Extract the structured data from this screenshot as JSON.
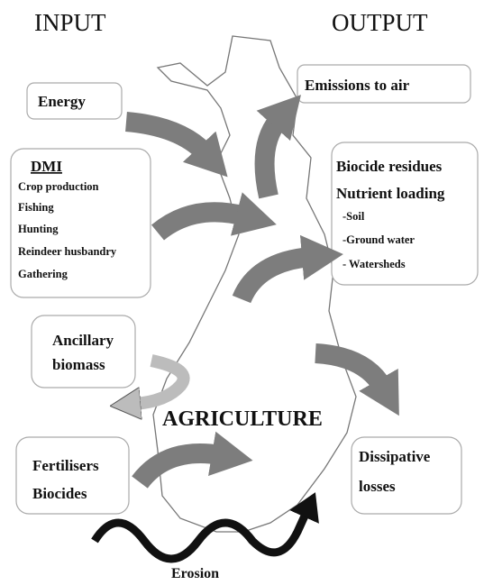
{
  "headers": {
    "input": "INPUT",
    "output": "OUTPUT"
  },
  "inputs": {
    "energy": "Energy",
    "dmi": {
      "title": "DMI",
      "items": [
        "Crop production",
        "Fishing",
        "Hunting",
        "Reindeer husbandry",
        "Gathering"
      ]
    },
    "ancillary": [
      "Ancillary",
      "biomass"
    ],
    "fertilisers": [
      "Fertilisers",
      "Biocides"
    ]
  },
  "outputs": {
    "emissions": "Emissions to air",
    "residues": {
      "lines": [
        "Biocide residues",
        "Nutrient loading"
      ],
      "items": [
        "-Soil",
        "-Ground water",
        "- Watersheds"
      ]
    },
    "dissipative": [
      "Dissipative",
      "losses"
    ]
  },
  "center": "AGRICULTURE",
  "erosion": "Erosion"
}
